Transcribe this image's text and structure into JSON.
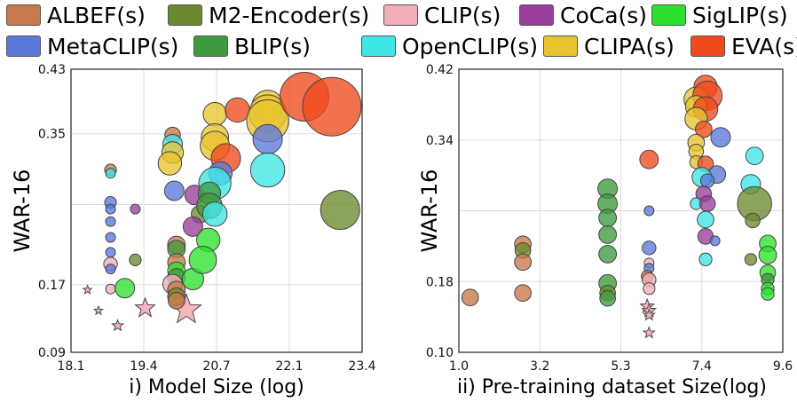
{
  "legend": [
    {
      "label": "ALBEF(s)",
      "color": "#C8794A"
    },
    {
      "label": "M2-Encoder(s)",
      "color": "#6B8A2E"
    },
    {
      "label": "CLIP(s)",
      "color": "#F4AEB8"
    },
    {
      "label": "CoCa(s)",
      "color": "#9B3D9B"
    },
    {
      "label": "SigLIP(s)",
      "color": "#2EE02E"
    },
    {
      "label": "MetaCLIP(s)",
      "color": "#5B78DD"
    },
    {
      "label": "BLIP(s)",
      "color": "#3E9A3E"
    },
    {
      "label": "OpenCLIP(s)",
      "color": "#3FE6E6"
    },
    {
      "label": "CLIPA(s)",
      "color": "#E8C430"
    },
    {
      "label": "EVA(s)",
      "color": "#F04A1C"
    }
  ],
  "chart_data": [
    {
      "type": "scatter",
      "xlabel": "i) Model Size (log)",
      "ylabel": "WAR-16",
      "xlim": [
        18.1,
        23.4
      ],
      "ylim": [
        0.09,
        0.43
      ],
      "x_ticks": [
        "18.1",
        "19.4",
        "20.7",
        "22.1",
        "23.4"
      ],
      "y_ticks": [
        "0.09",
        "0.17",
        "0.35",
        "0.43"
      ],
      "points": [
        {
          "m": "CLIP(s)",
          "x": 18.4,
          "y": 0.165,
          "s": 1,
          "shape": "star"
        },
        {
          "m": "CLIP(s)",
          "x": 18.6,
          "y": 0.14,
          "s": 1,
          "shape": "star"
        },
        {
          "m": "CLIP(s)",
          "x": 18.95,
          "y": 0.122,
          "s": 1.3,
          "shape": "star"
        },
        {
          "m": "CLIP(s)",
          "x": 19.45,
          "y": 0.143,
          "s": 2.3,
          "shape": "star"
        },
        {
          "m": "CLIP(s)",
          "x": 20.2,
          "y": 0.141,
          "s": 3.5,
          "shape": "star"
        },
        {
          "m": "ALBEF(s)",
          "x": 18.82,
          "y": 0.309,
          "s": 1.2
        },
        {
          "m": "OpenCLIP(s)",
          "x": 18.82,
          "y": 0.305,
          "s": 1
        },
        {
          "m": "MetaCLIP(s)",
          "x": 18.82,
          "y": 0.27,
          "s": 1.2
        },
        {
          "m": "MetaCLIP(s)",
          "x": 18.82,
          "y": 0.262,
          "s": 1
        },
        {
          "m": "MetaCLIP(s)",
          "x": 18.82,
          "y": 0.247,
          "s": 1
        },
        {
          "m": "MetaCLIP(s)",
          "x": 18.82,
          "y": 0.228,
          "s": 1
        },
        {
          "m": "MetaCLIP(s)",
          "x": 18.82,
          "y": 0.21,
          "s": 1
        },
        {
          "m": "CLIP(s)",
          "x": 18.82,
          "y": 0.196,
          "s": 1.4
        },
        {
          "m": "MetaCLIP(s)",
          "x": 18.82,
          "y": 0.19,
          "s": 1
        },
        {
          "m": "CLIP(s)",
          "x": 18.82,
          "y": 0.166,
          "s": 1
        },
        {
          "m": "CoCa(s)",
          "x": 19.27,
          "y": 0.262,
          "s": 1
        },
        {
          "m": "M2-Encoder(s)",
          "x": 19.27,
          "y": 0.201,
          "s": 1.2
        },
        {
          "m": "SigLIP(s)",
          "x": 19.08,
          "y": 0.167,
          "s": 2
        },
        {
          "m": "ALBEF(s)",
          "x": 19.95,
          "y": 0.351,
          "s": 1.6
        },
        {
          "m": "OpenCLIP(s)",
          "x": 19.95,
          "y": 0.34,
          "s": 2
        },
        {
          "m": "CLIPA(s)",
          "x": 19.95,
          "y": 0.33,
          "s": 2.2
        },
        {
          "m": "CLIPA(s)",
          "x": 19.9,
          "y": 0.317,
          "s": 2.4
        },
        {
          "m": "MetaCLIP(s)",
          "x": 19.98,
          "y": 0.284,
          "s": 2
        },
        {
          "m": "ALBEF(s)",
          "x": 20.02,
          "y": 0.219,
          "s": 1.8
        },
        {
          "m": "BLIP(s)",
          "x": 20.02,
          "y": 0.214,
          "s": 1.8
        },
        {
          "m": "ALBEF(s)",
          "x": 20.02,
          "y": 0.198,
          "s": 1.8
        },
        {
          "m": "SigLIP(s)",
          "x": 20.02,
          "y": 0.188,
          "s": 1.8
        },
        {
          "m": "BLIP(s)",
          "x": 20.02,
          "y": 0.18,
          "s": 1.8
        },
        {
          "m": "CLIP(s)",
          "x": 19.95,
          "y": 0.172,
          "s": 2
        },
        {
          "m": "ALBEF(s)",
          "x": 20.02,
          "y": 0.165,
          "s": 1.8
        },
        {
          "m": "M2-Encoder(s)",
          "x": 20.02,
          "y": 0.157,
          "s": 1.8
        },
        {
          "m": "ALBEF(s)",
          "x": 20.02,
          "y": 0.152,
          "s": 1.7
        },
        {
          "m": "CoCa(s)",
          "x": 20.35,
          "y": 0.279,
          "s": 2
        },
        {
          "m": "M2-Encoder(s)",
          "x": 20.45,
          "y": 0.256,
          "s": 1.8
        },
        {
          "m": "CoCa(s)",
          "x": 20.32,
          "y": 0.241,
          "s": 2
        },
        {
          "m": "SigLIP(s)",
          "x": 20.32,
          "y": 0.178,
          "s": 2.2
        },
        {
          "m": "CLIPA(s)",
          "x": 20.72,
          "y": 0.376,
          "s": 2.4
        },
        {
          "m": "CLIPA(s)",
          "x": 20.72,
          "y": 0.348,
          "s": 2.8
        },
        {
          "m": "CLIPA(s)",
          "x": 20.72,
          "y": 0.338,
          "s": 3
        },
        {
          "m": "EVA(s)",
          "x": 20.92,
          "y": 0.323,
          "s": 3
        },
        {
          "m": "MetaCLIP(s)",
          "x": 20.82,
          "y": 0.305,
          "s": 2.4
        },
        {
          "m": "OpenCLIP(s)",
          "x": 20.72,
          "y": 0.293,
          "s": 3.3
        },
        {
          "m": "BLIP(s)",
          "x": 20.62,
          "y": 0.281,
          "s": 2.3
        },
        {
          "m": "BLIP(s)",
          "x": 20.62,
          "y": 0.266,
          "s": 2.6
        },
        {
          "m": "OpenCLIP(s)",
          "x": 20.72,
          "y": 0.256,
          "s": 2.5
        },
        {
          "m": "SigLIP(s)",
          "x": 20.6,
          "y": 0.225,
          "s": 2.4
        },
        {
          "m": "SigLIP(s)",
          "x": 20.5,
          "y": 0.201,
          "s": 2.8
        },
        {
          "m": "EVA(s)",
          "x": 21.13,
          "y": 0.381,
          "s": 2.5
        },
        {
          "m": "CLIPA(s)",
          "x": 21.68,
          "y": 0.386,
          "s": 3.2
        },
        {
          "m": "CLIPA(s)",
          "x": 21.68,
          "y": 0.377,
          "s": 3.8
        },
        {
          "m": "CLIPA(s)",
          "x": 21.68,
          "y": 0.368,
          "s": 4.3
        },
        {
          "m": "MetaCLIP(s)",
          "x": 21.68,
          "y": 0.346,
          "s": 3
        },
        {
          "m": "OpenCLIP(s)",
          "x": 21.68,
          "y": 0.309,
          "s": 3.5
        },
        {
          "m": "EVA(s)",
          "x": 22.35,
          "y": 0.397,
          "s": 5
        },
        {
          "m": "EVA(s)",
          "x": 22.85,
          "y": 0.385,
          "s": 6
        },
        {
          "m": "M2-Encoder(s)",
          "x": 23.0,
          "y": 0.261,
          "s": 4
        }
      ]
    },
    {
      "type": "scatter",
      "xlabel": "ii) Pre-training dataset Size(log)",
      "ylabel": "WAR-16",
      "xlim": [
        1.0,
        9.6
      ],
      "ylim": [
        0.1,
        0.42
      ],
      "x_ticks": [
        "1.0",
        "3.2",
        "5.3",
        "7.4",
        "9.6"
      ],
      "y_ticks": [
        "0.10",
        "0.18",
        "0.34",
        "0.42"
      ],
      "points": [
        {
          "m": "ALBEF(s)",
          "x": 1.3,
          "y": 0.162,
          "s": 1.7
        },
        {
          "m": "ALBEF(s)",
          "x": 2.7,
          "y": 0.222,
          "s": 1.7
        },
        {
          "m": "M2-Encoder(s)",
          "x": 2.7,
          "y": 0.215,
          "s": 1.6
        },
        {
          "m": "ALBEF(s)",
          "x": 2.7,
          "y": 0.202,
          "s": 1.7
        },
        {
          "m": "ALBEF(s)",
          "x": 2.7,
          "y": 0.167,
          "s": 1.7
        },
        {
          "m": "BLIP(s)",
          "x": 4.95,
          "y": 0.285,
          "s": 2
        },
        {
          "m": "BLIP(s)",
          "x": 4.95,
          "y": 0.268,
          "s": 2
        },
        {
          "m": "BLIP(s)",
          "x": 4.95,
          "y": 0.252,
          "s": 1.8
        },
        {
          "m": "BLIP(s)",
          "x": 4.95,
          "y": 0.233,
          "s": 1.8
        },
        {
          "m": "BLIP(s)",
          "x": 4.95,
          "y": 0.211,
          "s": 1.8
        },
        {
          "m": "BLIP(s)",
          "x": 4.95,
          "y": 0.178,
          "s": 1.8
        },
        {
          "m": "M2-Encoder(s)",
          "x": 4.95,
          "y": 0.167,
          "s": 1.6
        },
        {
          "m": "BLIP(s)",
          "x": 4.95,
          "y": 0.161,
          "s": 1.6
        },
        {
          "m": "EVA(s)",
          "x": 6.05,
          "y": 0.318,
          "s": 1.9
        },
        {
          "m": "MetaCLIP(s)",
          "x": 6.05,
          "y": 0.26,
          "s": 1
        },
        {
          "m": "MetaCLIP(s)",
          "x": 6.05,
          "y": 0.218,
          "s": 1.4
        },
        {
          "m": "CLIP(s)",
          "x": 6.05,
          "y": 0.201,
          "s": 1
        },
        {
          "m": "MetaCLIP(s)",
          "x": 6.05,
          "y": 0.195,
          "s": 1
        },
        {
          "m": "ALBEF(s)",
          "x": 6.0,
          "y": 0.186,
          "s": 1.2
        },
        {
          "m": "CLIP(s)",
          "x": 6.05,
          "y": 0.182,
          "s": 1.4
        },
        {
          "m": "CLIP(s)",
          "x": 6.05,
          "y": 0.172,
          "s": 1.2
        },
        {
          "m": "CLIP(s)",
          "x": 6.0,
          "y": 0.152,
          "s": 1.6,
          "shape": "star"
        },
        {
          "m": "CLIP(s)",
          "x": 6.05,
          "y": 0.147,
          "s": 1.6,
          "shape": "star"
        },
        {
          "m": "CLIP(s)",
          "x": 6.05,
          "y": 0.142,
          "s": 1.3,
          "shape": "star"
        },
        {
          "m": "CLIP(s)",
          "x": 6.05,
          "y": 0.122,
          "s": 1.3,
          "shape": "star"
        },
        {
          "m": "EVA(s)",
          "x": 7.55,
          "y": 0.4,
          "s": 2.4
        },
        {
          "m": "CLIPA(s)",
          "x": 7.3,
          "y": 0.386,
          "s": 2.5
        },
        {
          "m": "EVA(s)",
          "x": 7.6,
          "y": 0.39,
          "s": 3
        },
        {
          "m": "CLIPA(s)",
          "x": 7.3,
          "y": 0.378,
          "s": 2.2
        },
        {
          "m": "EVA(s)",
          "x": 7.55,
          "y": 0.375,
          "s": 2.5
        },
        {
          "m": "CLIPA(s)",
          "x": 7.3,
          "y": 0.364,
          "s": 2.3
        },
        {
          "m": "EVA(s)",
          "x": 7.5,
          "y": 0.352,
          "s": 1.7
        },
        {
          "m": "MetaCLIP(s)",
          "x": 7.95,
          "y": 0.343,
          "s": 2
        },
        {
          "m": "CLIPA(s)",
          "x": 7.3,
          "y": 0.337,
          "s": 1.7
        },
        {
          "m": "CLIPA(s)",
          "x": 7.3,
          "y": 0.327,
          "s": 1.5
        },
        {
          "m": "OpenCLIP(s)",
          "x": 8.85,
          "y": 0.322,
          "s": 1.8
        },
        {
          "m": "CLIPA(s)",
          "x": 7.3,
          "y": 0.315,
          "s": 1.3
        },
        {
          "m": "EVA(s)",
          "x": 7.55,
          "y": 0.313,
          "s": 1.6
        },
        {
          "m": "MetaCLIP(s)",
          "x": 7.85,
          "y": 0.301,
          "s": 1.8
        },
        {
          "m": "OpenCLIP(s)",
          "x": 7.45,
          "y": 0.298,
          "s": 2
        },
        {
          "m": "MetaCLIP(s)",
          "x": 7.6,
          "y": 0.294,
          "s": 1.4
        },
        {
          "m": "OpenCLIP(s)",
          "x": 8.75,
          "y": 0.29,
          "s": 2
        },
        {
          "m": "CoCa(s)",
          "x": 7.5,
          "y": 0.279,
          "s": 1.6
        },
        {
          "m": "OpenCLIP(s)",
          "x": 7.3,
          "y": 0.268,
          "s": 1.2
        },
        {
          "m": "CoCa(s)",
          "x": 7.6,
          "y": 0.268,
          "s": 1.6
        },
        {
          "m": "M2-Encoder(s)",
          "x": 8.85,
          "y": 0.268,
          "s": 3.5
        },
        {
          "m": "OpenCLIP(s)",
          "x": 7.55,
          "y": 0.25,
          "s": 1.7
        },
        {
          "m": "M2-Encoder(s)",
          "x": 8.8,
          "y": 0.249,
          "s": 1.5
        },
        {
          "m": "CoCa(s)",
          "x": 7.55,
          "y": 0.231,
          "s": 1.6
        },
        {
          "m": "MetaCLIP(s)",
          "x": 7.8,
          "y": 0.226,
          "s": 1
        },
        {
          "m": "SigLIP(s)",
          "x": 9.2,
          "y": 0.223,
          "s": 1.7
        },
        {
          "m": "SigLIP(s)",
          "x": 9.2,
          "y": 0.21,
          "s": 1.8
        },
        {
          "m": "OpenCLIP(s)",
          "x": 7.55,
          "y": 0.205,
          "s": 1.3
        },
        {
          "m": "M2-Encoder(s)",
          "x": 8.75,
          "y": 0.205,
          "s": 1.2
        },
        {
          "m": "SigLIP(s)",
          "x": 9.2,
          "y": 0.19,
          "s": 1.6
        },
        {
          "m": "BLIP(s)",
          "x": 9.2,
          "y": 0.182,
          "s": 1.3
        },
        {
          "m": "SigLIP(s)",
          "x": 9.2,
          "y": 0.172,
          "s": 1.3
        },
        {
          "m": "SigLIP(s)",
          "x": 9.2,
          "y": 0.166,
          "s": 1.3
        }
      ]
    }
  ]
}
